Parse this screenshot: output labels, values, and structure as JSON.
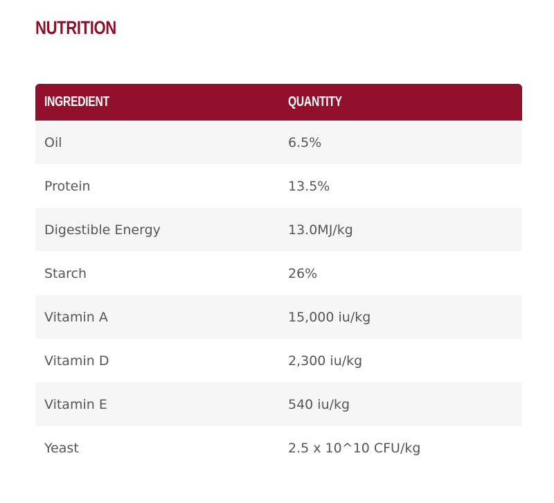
{
  "section": {
    "title": "NUTRITION"
  },
  "table": {
    "headers": [
      "INGREDIENT",
      "QUANTITY"
    ],
    "rows": [
      {
        "ingredient": "Oil",
        "quantity": "6.5%"
      },
      {
        "ingredient": "Protein",
        "quantity": "13.5%"
      },
      {
        "ingredient": "Digestible Energy",
        "quantity": "13.0MJ/kg"
      },
      {
        "ingredient": "Starch",
        "quantity": "26%"
      },
      {
        "ingredient": "Vitamin A",
        "quantity": "15,000 iu/kg"
      },
      {
        "ingredient": "Vitamin D",
        "quantity": "2,300 iu/kg"
      },
      {
        "ingredient": "Vitamin E",
        "quantity": "540 iu/kg"
      },
      {
        "ingredient": "Yeast",
        "quantity": "2.5 x 10^10 CFU/kg"
      }
    ]
  },
  "colors": {
    "brand": "#92102b",
    "title": "#8c0f2a",
    "row_alt": "#f6f6f6",
    "text": "#555555"
  }
}
